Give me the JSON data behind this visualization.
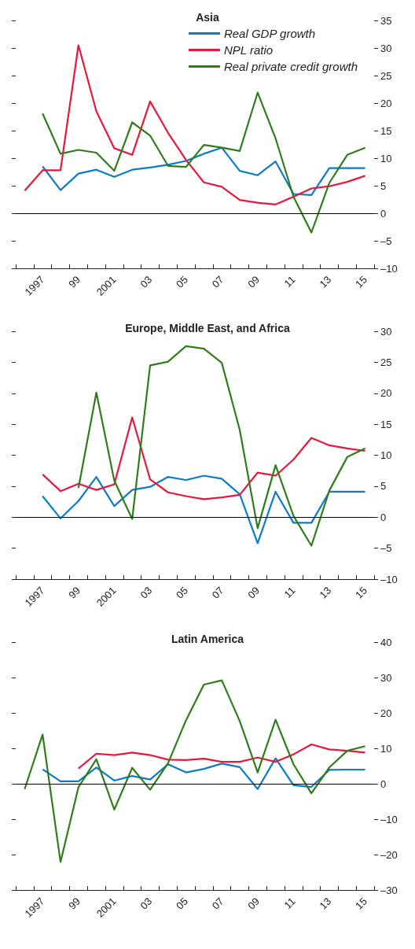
{
  "chart_data": [
    {
      "type": "line",
      "title": "Asia",
      "categories": [
        null,
        "1997",
        null,
        "99",
        null,
        "2001",
        null,
        "03",
        null,
        "05",
        null,
        "07",
        null,
        "09",
        null,
        "11",
        null,
        "13",
        null,
        "15"
      ],
      "series": [
        {
          "name": "Real GDP growth",
          "color": "#0a7cc8",
          "values": [
            null,
            8.5,
            4.2,
            7.2,
            7.9,
            6.6,
            7.9,
            8.3,
            8.8,
            9.5,
            10.8,
            11.9,
            7.7,
            6.9,
            9.4,
            3.5,
            3.3,
            8.2,
            8.2,
            8.2
          ]
        },
        {
          "name": "NPL ratio",
          "color": "#e8173c",
          "values": [
            4.1,
            7.8,
            7.8,
            30.5,
            18.5,
            11.8,
            10.6,
            20.3,
            14.6,
            9.7,
            5.6,
            4.8,
            2.4,
            1.9,
            1.6,
            3.0,
            4.5,
            4.9,
            5.7,
            6.8
          ]
        },
        {
          "name": "Real private credit growth",
          "color": "#2e7d1a",
          "values": [
            null,
            18.1,
            10.8,
            11.5,
            11.0,
            7.7,
            16.5,
            14.1,
            8.6,
            8.4,
            12.4,
            11.9,
            11.3,
            21.9,
            13.6,
            3.0,
            -3.5,
            5.5,
            10.6,
            11.9
          ]
        }
      ],
      "ylim": [
        -10,
        35
      ],
      "yticks": [
        {
          "value": -10,
          "label": "–10"
        },
        {
          "value": -5,
          "label": "–5"
        },
        0,
        5,
        10,
        15,
        20,
        25,
        30,
        35
      ],
      "ref_lines": [
        {
          "axis": "y",
          "value": 0,
          "color": "#000000"
        }
      ],
      "legend": "top right",
      "grid": false
    },
    {
      "type": "line",
      "title": "Europe, Middle East, and Africa",
      "categories": [
        null,
        "1997",
        null,
        "99",
        null,
        "2001",
        null,
        "03",
        null,
        "05",
        null,
        "07",
        null,
        "09",
        null,
        "11",
        null,
        "13",
        null,
        "15"
      ],
      "series": [
        {
          "color": "#0a7cc8",
          "values": [
            null,
            3.4,
            -0.2,
            2.6,
            6.5,
            1.8,
            4.4,
            4.9,
            6.5,
            6.0,
            6.7,
            6.2,
            3.7,
            -4.2,
            4.1,
            -0.9,
            -0.9,
            4.1,
            4.1,
            4.1
          ]
        },
        {
          "color": "#e8173c",
          "values": [
            null,
            6.9,
            4.2,
            5.4,
            4.4,
            5.3,
            16.1,
            6.1,
            4.0,
            3.4,
            2.9,
            3.2,
            3.6,
            7.2,
            6.7,
            9.3,
            12.8,
            11.6,
            11.1,
            10.7
          ]
        },
        {
          "color": "#2e7d1a",
          "values": [
            null,
            null,
            null,
            4.7,
            20.1,
            5.9,
            -0.3,
            24.5,
            25.1,
            27.6,
            27.2,
            24.9,
            14.1,
            -1.8,
            8.4,
            0.2,
            -4.6,
            4.3,
            9.7,
            11.1
          ]
        }
      ],
      "ylim": [
        -10,
        30
      ],
      "yticks": [
        {
          "value": -10,
          "label": "–10"
        },
        {
          "value": -5,
          "label": "–5"
        },
        0,
        5,
        10,
        15,
        20,
        25,
        30
      ],
      "ref_lines": [
        {
          "axis": "y",
          "value": 0,
          "color": "#000000"
        }
      ],
      "grid": false
    },
    {
      "type": "line",
      "title": "Latin America",
      "categories": [
        null,
        "1997",
        null,
        "99",
        null,
        "2001",
        null,
        "03",
        null,
        "05",
        null,
        "07",
        null,
        "09",
        null,
        "11",
        null,
        "13",
        null,
        "15"
      ],
      "series": [
        {
          "color": "#0a7cc8",
          "values": [
            null,
            4.1,
            0.7,
            0.7,
            4.6,
            0.9,
            2.2,
            1.2,
            5.5,
            3.2,
            4.2,
            5.7,
            4.7,
            -1.5,
            7.2,
            -0.4,
            -0.9,
            3.9,
            4.0,
            4.0
          ]
        },
        {
          "color": "#e8173c",
          "values": [
            null,
            null,
            null,
            4.3,
            8.5,
            8.1,
            8.8,
            8.1,
            6.8,
            6.7,
            7.1,
            6.2,
            6.2,
            7.4,
            6.2,
            8.3,
            11.1,
            9.7,
            9.3,
            8.8
          ]
        },
        {
          "color": "#2e7d1a",
          "values": [
            -1.5,
            13.9,
            -22.1,
            -1.0,
            6.9,
            -7.3,
            4.5,
            -1.7,
            5.8,
            17.9,
            28.0,
            29.2,
            17.7,
            3.2,
            18.1,
            5.5,
            -2.7,
            4.6,
            9.3,
            10.6
          ]
        }
      ],
      "ylim": [
        -30,
        40
      ],
      "yticks": [
        {
          "value": -30,
          "label": "–30"
        },
        {
          "value": -20,
          "label": "–20"
        },
        {
          "value": -10,
          "label": "–10"
        },
        0,
        10,
        20,
        30,
        40
      ],
      "ref_lines": [
        {
          "axis": "y",
          "value": 0,
          "color": "#000000"
        }
      ],
      "grid": false
    }
  ]
}
